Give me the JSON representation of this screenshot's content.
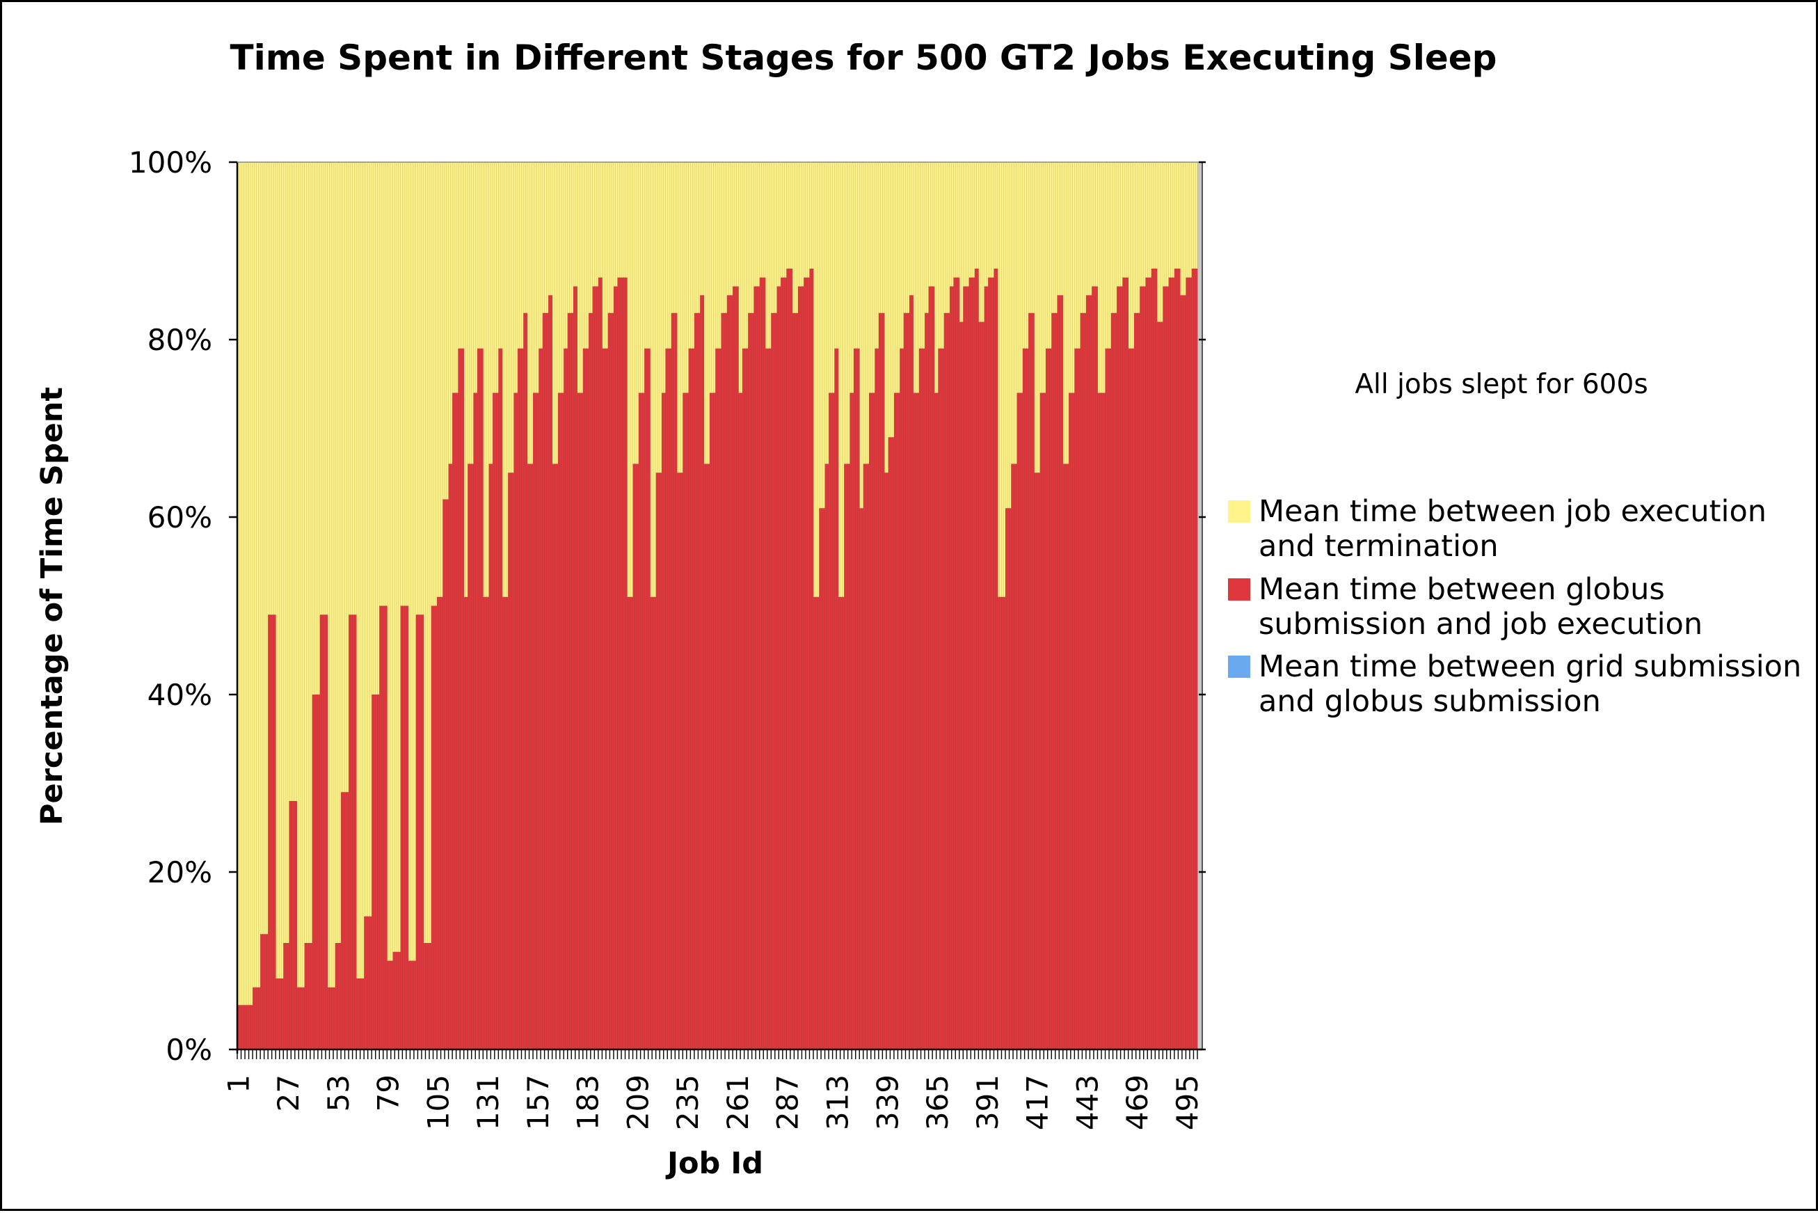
{
  "chart_data": {
    "type": "bar",
    "stacked": "percent",
    "title": "Time Spent in Different Stages for 500 GT2 Jobs Executing Sleep",
    "xlabel": "Job Id",
    "ylabel": "Percentage of Time Spent",
    "ylim": [
      0,
      100
    ],
    "y_ticks": [
      "0%",
      "20%",
      "40%",
      "60%",
      "80%",
      "100%"
    ],
    "x_ticks": [
      "1",
      "27",
      "53",
      "79",
      "105",
      "131",
      "157",
      "183",
      "209",
      "235",
      "261",
      "287",
      "313",
      "339",
      "365",
      "391",
      "417",
      "443",
      "469",
      "495"
    ],
    "x_range": [
      1,
      500
    ],
    "annotation": "All jobs slept for 600s",
    "legend_position": "right",
    "series": [
      {
        "name": "Mean time between job execution and termination",
        "color": "#fff38a",
        "rule": "remainder to 100%"
      },
      {
        "name": "Mean time between globus submission and job execution",
        "color": "#e0373f"
      },
      {
        "name": "Mean time between grid submission and globus submission",
        "color": "#6aa9f0",
        "values": "≈0 for all jobs"
      }
    ],
    "groups": [
      {
        "start": 1,
        "end": 104,
        "levels": [
          5,
          5,
          7,
          13,
          49,
          8,
          12,
          28,
          7,
          12,
          40,
          49,
          7,
          12,
          29,
          49,
          8,
          15,
          40,
          50,
          10,
          11,
          50,
          10,
          49,
          12,
          50
        ]
      },
      {
        "start": 105,
        "end": 203,
        "levels": [
          51,
          62,
          66,
          74,
          79,
          51,
          66,
          74,
          79,
          51,
          66,
          74,
          79,
          51,
          65,
          74,
          79,
          83,
          66,
          74,
          79,
          83,
          85,
          66,
          74,
          79,
          83,
          86,
          74,
          79,
          83,
          86,
          87,
          79,
          83,
          86,
          87,
          87
        ]
      },
      {
        "start": 204,
        "end": 300,
        "levels": [
          51,
          66,
          74,
          79,
          51,
          65,
          74,
          79,
          83,
          65,
          74,
          79,
          83,
          85,
          66,
          74,
          79,
          83,
          85,
          86,
          74,
          79,
          83,
          86,
          87,
          79,
          83,
          86,
          87,
          88,
          83,
          86,
          87,
          88
        ]
      },
      {
        "start": 301,
        "end": 396,
        "levels": [
          51,
          61,
          66,
          74,
          79,
          51,
          66,
          74,
          79,
          61,
          66,
          74,
          79,
          83,
          65,
          69,
          74,
          79,
          83,
          85,
          74,
          79,
          83,
          86,
          74,
          79,
          83,
          86,
          87,
          82,
          86,
          87,
          88,
          82,
          86,
          87,
          88
        ]
      },
      {
        "start": 397,
        "end": 500,
        "levels": [
          51,
          61,
          66,
          74,
          79,
          83,
          65,
          74,
          79,
          83,
          85,
          66,
          74,
          79,
          83,
          85,
          86,
          74,
          79,
          83,
          86,
          87,
          79,
          83,
          86,
          87,
          88,
          82,
          86,
          87,
          88,
          85,
          87,
          88
        ]
      }
    ]
  }
}
